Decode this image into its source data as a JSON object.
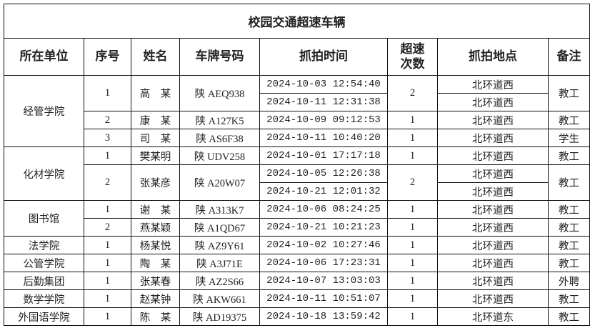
{
  "title": "校园交通超速车辆",
  "headers": [
    "所在单位",
    "序号",
    "姓名",
    "车牌号码",
    "抓拍时间",
    "超速\n次数",
    "抓拍地点",
    "备注"
  ],
  "units": [
    {
      "name": "经管学院",
      "people": [
        {
          "seq": "1",
          "name": "高　某",
          "plate": "陕 AEQ938",
          "count": "2",
          "note": "教工",
          "captures": [
            {
              "time": "2024-10-03 12:54:40",
              "location": "北环道西"
            },
            {
              "time": "2024-10-11 12:31:38",
              "location": "北环道西"
            }
          ]
        },
        {
          "seq": "2",
          "name": "康　某",
          "plate": "陕 A127K5",
          "count": "1",
          "note": "教工",
          "captures": [
            {
              "time": "2024-10-09 09:12:53",
              "location": "北环道西"
            }
          ]
        },
        {
          "seq": "3",
          "name": "司　某",
          "plate": "陕 AS6F38",
          "count": "1",
          "note": "学生",
          "captures": [
            {
              "time": "2024-10-11 10:40:20",
              "location": "北环道西"
            }
          ]
        }
      ]
    },
    {
      "name": "化材学院",
      "people": [
        {
          "seq": "1",
          "name": "樊某明",
          "plate": "陕 UDV258",
          "count": "1",
          "note": "教工",
          "captures": [
            {
              "time": "2024-10-01 17:17:18",
              "location": "北环道西"
            }
          ]
        },
        {
          "seq": "2",
          "name": "张某彦",
          "plate": "陕 A20W07",
          "count": "2",
          "note": "教工",
          "captures": [
            {
              "time": "2024-10-05 12:26:38",
              "location": "北环道西"
            },
            {
              "time": "2024-10-21 12:01:32",
              "location": "北环道西"
            }
          ]
        }
      ]
    },
    {
      "name": "图书馆",
      "people": [
        {
          "seq": "1",
          "name": "谢　某",
          "plate": "陕 A313K7",
          "count": "1",
          "note": "教工",
          "captures": [
            {
              "time": "2024-10-06 08:24:25",
              "location": "北环道西"
            }
          ]
        },
        {
          "seq": "2",
          "name": "燕某颖",
          "plate": "陕 A1QD67",
          "count": "1",
          "note": "教工",
          "captures": [
            {
              "time": "2024-10-21 10:21:23",
              "location": "北环道西"
            }
          ]
        }
      ]
    },
    {
      "name": "法学院",
      "people": [
        {
          "seq": "1",
          "name": "杨某悦",
          "plate": "陕 AZ9Y61",
          "count": "1",
          "note": "教工",
          "captures": [
            {
              "time": "2024-10-02 10:27:46",
              "location": "北环道西"
            }
          ]
        }
      ]
    },
    {
      "name": "公管学院",
      "people": [
        {
          "seq": "1",
          "name": "陶　某",
          "plate": "陕 A3J71E",
          "count": "1",
          "note": "教工",
          "captures": [
            {
              "time": "2024-10-06 17:23:31",
              "location": "北环道西"
            }
          ]
        }
      ]
    },
    {
      "name": "后勤集团",
      "people": [
        {
          "seq": "1",
          "name": "张某春",
          "plate": "陕 AZ2S66",
          "count": "1",
          "note": "外聘",
          "captures": [
            {
              "time": "2024-10-07 13:03:03",
              "location": "北环道西"
            }
          ]
        }
      ]
    },
    {
      "name": "数学学院",
      "people": [
        {
          "seq": "1",
          "name": "赵某钟",
          "plate": "陕 AKW661",
          "count": "1",
          "note": "教工",
          "captures": [
            {
              "time": "2024-10-11 10:51:07",
              "location": "北环道西"
            }
          ]
        }
      ]
    },
    {
      "name": "外国语学院",
      "people": [
        {
          "seq": "1",
          "name": "陈　某",
          "plate": "陕 AD19375",
          "count": "1",
          "note": "教工",
          "captures": [
            {
              "time": "2024-10-18 13:59:42",
              "location": "北环道东"
            }
          ]
        }
      ]
    }
  ]
}
